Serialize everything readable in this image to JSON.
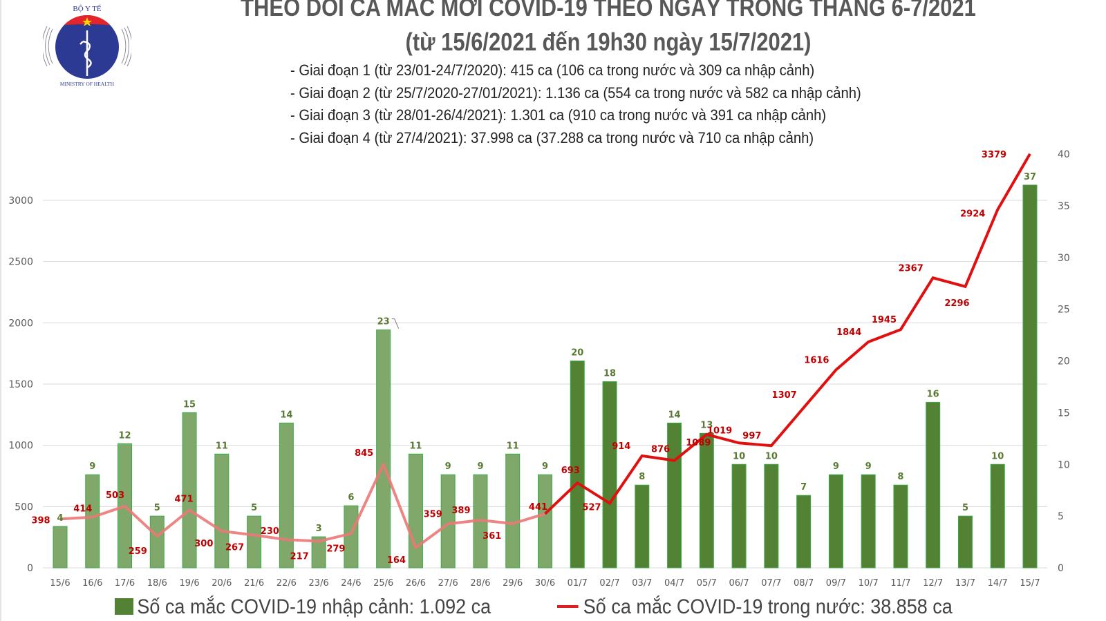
{
  "header": {
    "logo": {
      "top_text": "BỘ Y TẾ",
      "bottom_text": "MINISTRY OF HEALTH",
      "icon": "caduceus-icon"
    },
    "title_line1": "THEO DÕI CA MẮC MỚI COVID-19 THEO NGÀY TRONG THÁNG 6-7/2021",
    "title_line2": "(từ 15/6/2021 đến 19h30 ngày 15/7/2021)",
    "phases": [
      "- Giai đoạn 1 (từ 23/01-24/7/2020): 415 ca (106 ca trong nước và 309 ca nhập cảnh)",
      "- Giai đoạn 2 (từ 25/7/2020-27/01/2021): 1.136 ca (554 ca trong nước và 582 ca nhập cảnh)",
      "- Giai đoạn 3 (từ 28/01-26/4/2021): 1.301 ca (910 ca trong nước và 391 ca nhập cảnh)",
      "- Giai đoạn 4 (từ 27/4/2021): 37.998 ca (37.288 ca trong nước và 710 ca nhập cảnh)"
    ]
  },
  "legend": {
    "bars_label": "Số ca mắc COVID-19 nhập cảnh: 1.092 ca",
    "line_label": "Số ca mắc COVID-19 trong nước: 38.858 ca"
  },
  "colors": {
    "bar_early": "#7fa86a",
    "bar_late": "#548235",
    "bar_border": "#3caa4a",
    "line_early": "#ec7878",
    "line_late": "#e01010",
    "label_red": "#c00000",
    "label_green": "#5a7a34",
    "grid": "#d9d9d9",
    "axis_text": "#595959"
  },
  "chart_data": {
    "type": "bar+line",
    "title": "THEO DÕI CA MẮC MỚI COVID-19 THEO NGÀY TRONG THÁNG 6-7/2021",
    "subtitle": "(từ 15/6/2021 đến 19h30 ngày 15/7/2021)",
    "categories": [
      "15/6",
      "16/6",
      "17/6",
      "18/6",
      "19/6",
      "20/6",
      "21/6",
      "22/6",
      "23/6",
      "24/6",
      "25/6",
      "26/6",
      "27/6",
      "28/6",
      "29/6",
      "30/6",
      "01/7",
      "02/7",
      "03/7",
      "04/7",
      "05/7",
      "06/7",
      "07/7",
      "08/7",
      "09/7",
      "10/7",
      "11/7",
      "12/7",
      "13/7",
      "14/7",
      "15/7"
    ],
    "series": [
      {
        "name": "Số ca mắc COVID-19 nhập cảnh: 1.092 ca",
        "type": "bar",
        "axis": "right",
        "values": [
          4,
          9,
          12,
          5,
          15,
          11,
          5,
          14,
          3,
          6,
          23,
          11,
          9,
          9,
          11,
          9,
          20,
          18,
          8,
          14,
          13,
          10,
          10,
          7,
          9,
          9,
          8,
          16,
          5,
          10,
          37
        ]
      },
      {
        "name": "Số ca mắc COVID-19 trong nước: 38.858 ca",
        "type": "line",
        "axis": "left",
        "values": [
          398,
          414,
          503,
          259,
          471,
          300,
          267,
          230,
          217,
          279,
          845,
          164,
          359,
          389,
          361,
          441,
          693,
          527,
          914,
          876,
          1089,
          1019,
          997,
          1307,
          1616,
          1844,
          1945,
          2367,
          2296,
          2924,
          3379
        ]
      }
    ],
    "left_axis": {
      "ticks": [
        0,
        500,
        1000,
        1500,
        2000,
        2500,
        3000
      ],
      "ylim": [
        0,
        3379
      ]
    },
    "right_axis": {
      "ticks": [
        0,
        5,
        10,
        15,
        20,
        25,
        30,
        35,
        40
      ],
      "ylim": [
        0,
        40
      ]
    },
    "xlabel": "",
    "ylabel": "",
    "grid": true,
    "legend_position": "bottom"
  }
}
